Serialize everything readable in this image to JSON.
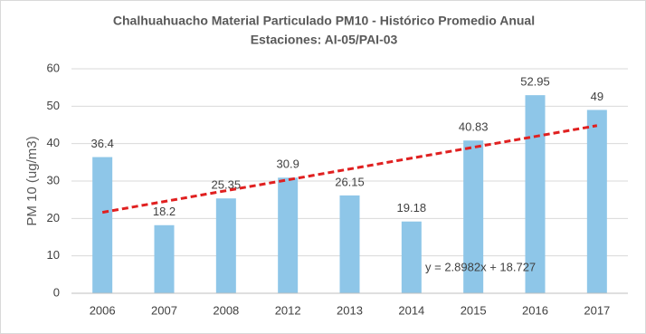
{
  "chart_data": {
    "type": "bar",
    "title": "Chalhuahuacho Material Particulado PM10 - Histórico Promedio Anual",
    "subtitle": "Estaciones: AI-05/PAI-03",
    "y_label": "PM 10 (ug/m3)",
    "categories": [
      "2006",
      "2007",
      "2008",
      "2012",
      "2013",
      "2014",
      "2015",
      "2016",
      "2017"
    ],
    "values": [
      36.4,
      18.2,
      25.35,
      30.9,
      26.15,
      19.18,
      40.83,
      52.95,
      49
    ],
    "color": "#8ec6e8",
    "ylim": [
      0,
      60
    ],
    "yticks": [
      0,
      10,
      20,
      30,
      40,
      50,
      60
    ],
    "grid": true,
    "trendline": {
      "label": "y = 2.8982x + 18.727",
      "slope": 2.8982,
      "intercept": 18.727,
      "color": "#e02020"
    }
  }
}
